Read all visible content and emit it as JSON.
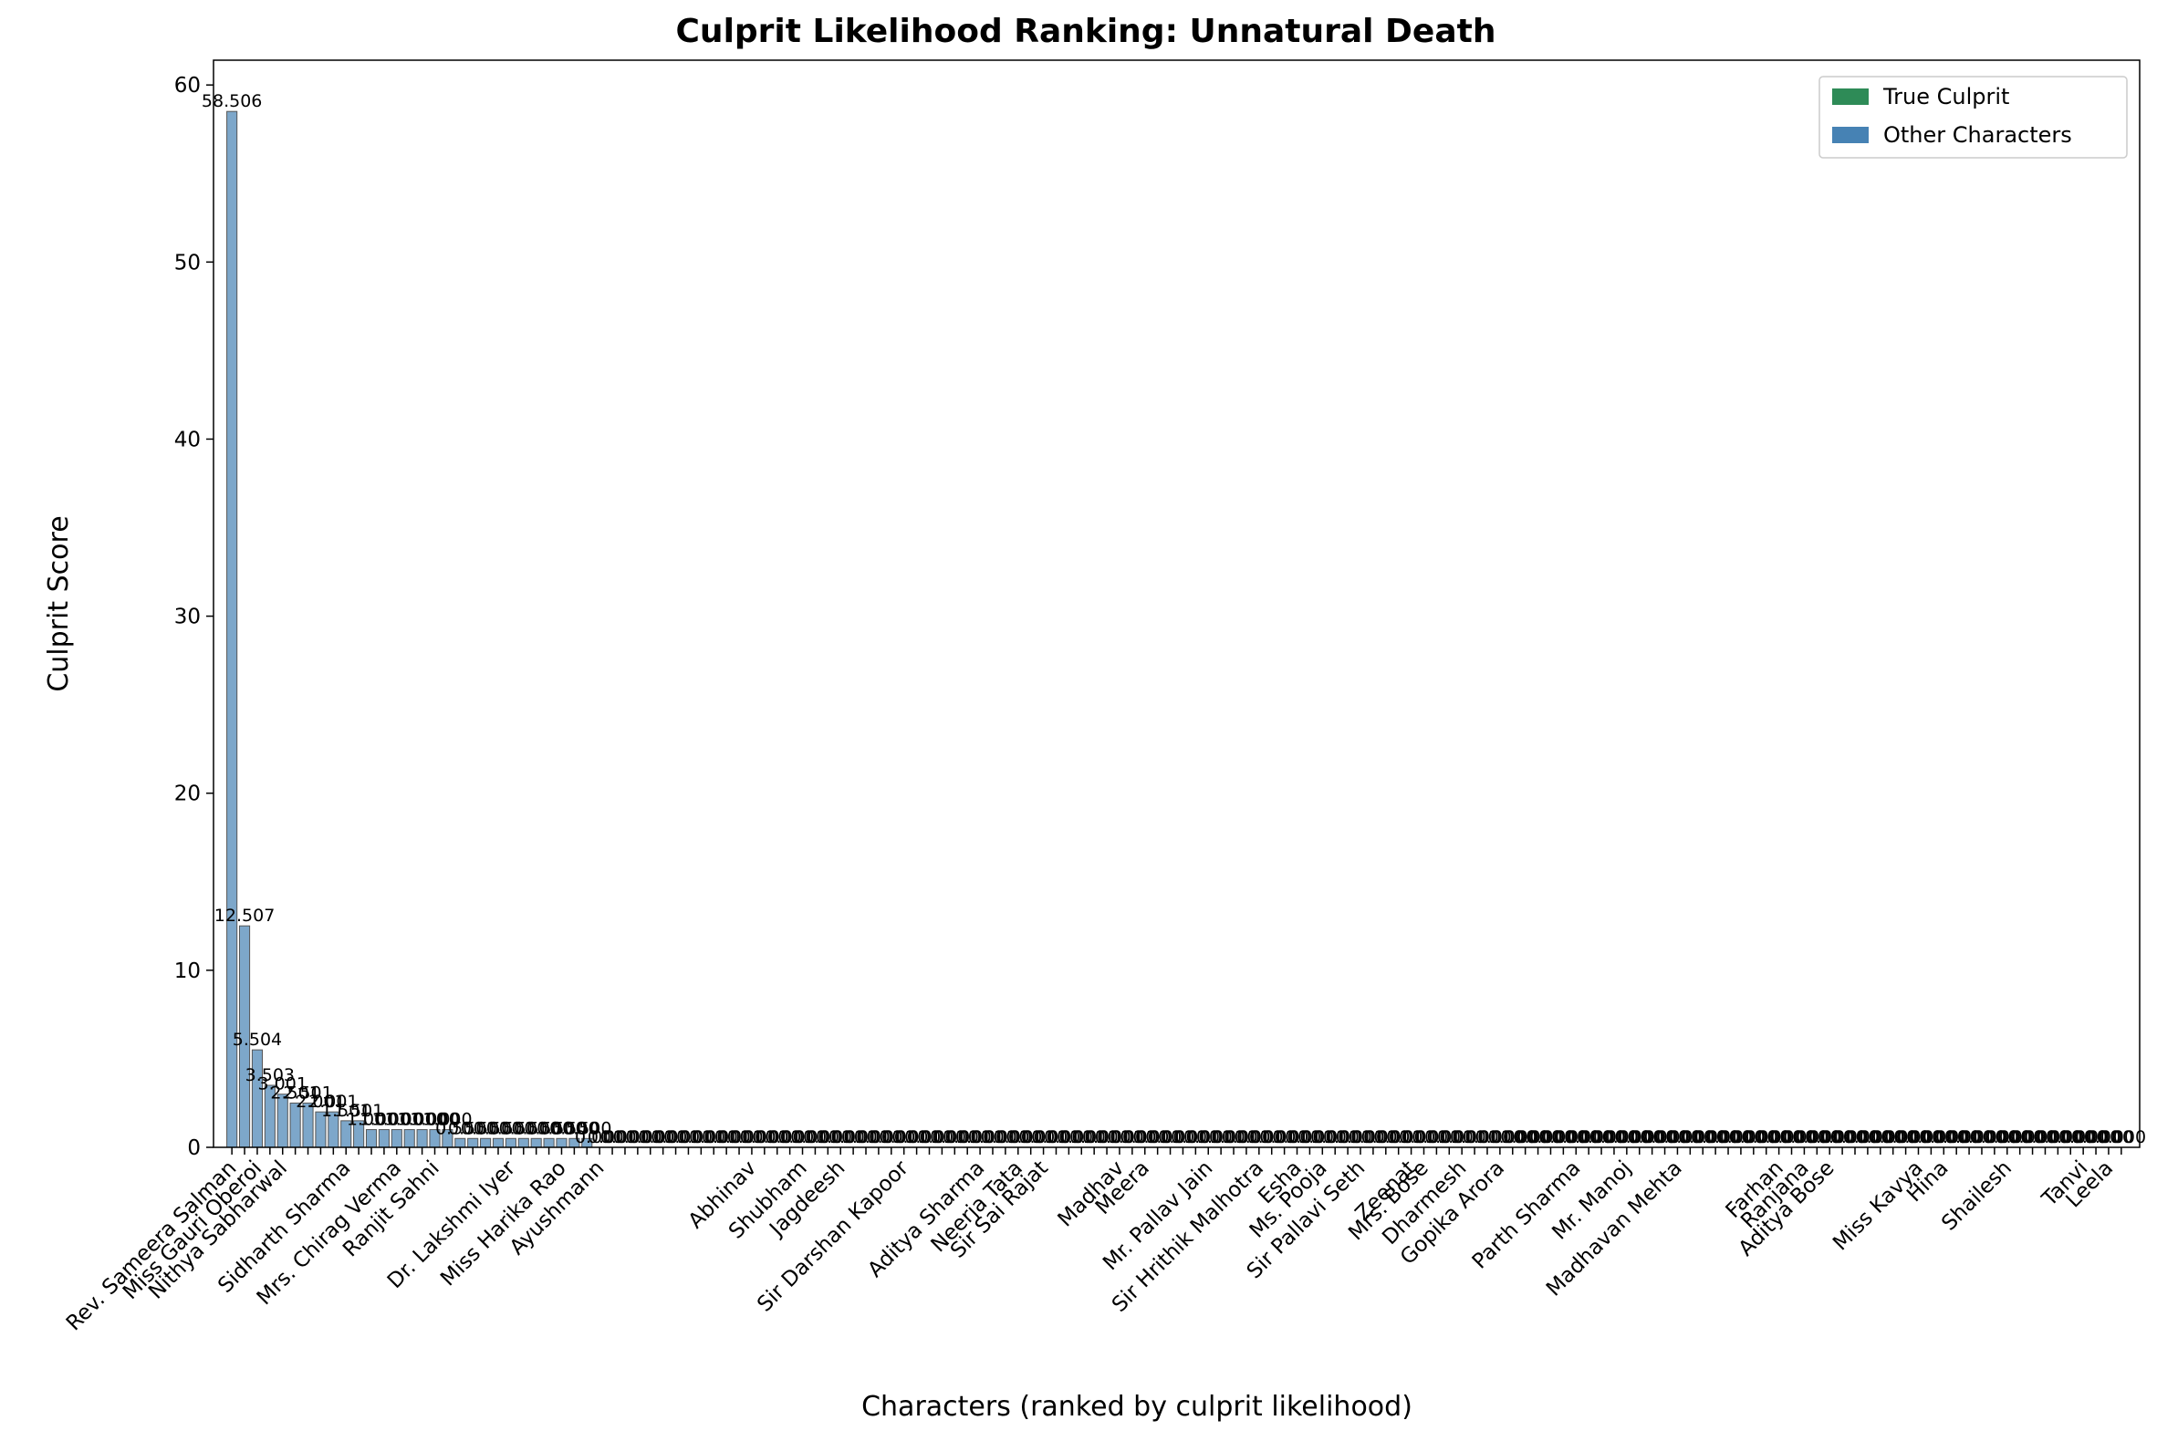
{
  "chart_data": {
    "type": "bar",
    "title": "Culprit Likelihood Ranking: Unnatural Death",
    "xlabel": "Characters (ranked by culprit likelihood)",
    "ylabel": "Culprit Score",
    "legend_position": "upper right",
    "legend": [
      {
        "name": "True Culprit",
        "color": "#2e8b57"
      },
      {
        "name": "Other Characters",
        "color": "#4682b4"
      }
    ],
    "categories": [
      "Rev. Sameera Salman",
      null,
      "Miss Gauri Oberoi",
      null,
      "Nithya Sabharwal",
      null,
      null,
      null,
      null,
      "Sidharth Sharma",
      null,
      null,
      null,
      "Mrs. Chirag Verma",
      null,
      null,
      "Ranjit Sahni",
      null,
      null,
      null,
      null,
      null,
      "Dr. Lakshmi Iyer",
      null,
      null,
      null,
      "Miss Harika Rao",
      null,
      null,
      "Ayushmann",
      null,
      null,
      null,
      null,
      null,
      null,
      null,
      null,
      null,
      null,
      null,
      "Abhinav",
      null,
      null,
      null,
      "Shubham",
      null,
      null,
      "Jagdeesh",
      null,
      null,
      null,
      null,
      "Sir Darshan Kapoor",
      null,
      null,
      null,
      null,
      null,
      "Aditya Sharma",
      null,
      null,
      "Neerja Tata",
      null,
      "Sir Sai Rajat",
      null,
      null,
      null,
      null,
      null,
      "Madhav",
      null,
      "Meera",
      null,
      null,
      null,
      null,
      "Mr. Pallav Jain",
      null,
      null,
      null,
      "Sir Hrithik Malhotra",
      null,
      null,
      "Esha",
      null,
      "Ms. Pooja",
      null,
      null,
      "Sir Pallavi Seth",
      null,
      null,
      null,
      "Zeenat",
      "Mrs. Bose",
      null,
      null,
      "Dharmesh",
      null,
      null,
      "Gopika Arora",
      null,
      null,
      null,
      null,
      null,
      "Parth Sharma",
      null,
      null,
      null,
      "Mr. Manoj",
      null,
      null,
      null,
      "Madhavan Mehta",
      null,
      null,
      null,
      null,
      null,
      null,
      null,
      "Farhan",
      null,
      "Ranjana",
      null,
      "Aditya Bose",
      null,
      null,
      null,
      null,
      null,
      null,
      "Miss Kavya",
      null,
      "Hina",
      null,
      null,
      null,
      null,
      "Shailesh",
      null,
      null,
      null,
      null,
      null,
      "Tanvi",
      null,
      "Leela",
      null
    ],
    "values": [
      58.506,
      12.507,
      5.504,
      3.503,
      3.001,
      2.501,
      2.501,
      2.001,
      2.001,
      1.501,
      1.501,
      1.001,
      1.001,
      1.001,
      1.001,
      1.0,
      1.0,
      1.0,
      0.501,
      0.501,
      0.501,
      0.501,
      0.501,
      0.501,
      0.5,
      0.5,
      0.5,
      0.5,
      0.5,
      0.001,
      0.001,
      0.001,
      0.001,
      0.001,
      0.001,
      0.001,
      0.001,
      0.001,
      0.001,
      0.001,
      0.001,
      0.001,
      0.001,
      0.001,
      0.001,
      0.001,
      0.001,
      0.001,
      0.001,
      0.001,
      0.001,
      0.001,
      0.001,
      0.001,
      0.001,
      0.001,
      0.001,
      0.001,
      0.001,
      0.001,
      0.001,
      0.001,
      0.001,
      0.001,
      0.001,
      0.001,
      0.001,
      0.001,
      0.001,
      0.001,
      0.001,
      0.001,
      0.001,
      0.001,
      0.001,
      0.001,
      0.001,
      0.001,
      0.001,
      0.001,
      0.001,
      0.001,
      0.001,
      0.001,
      0.001,
      0.001,
      0.001,
      0.001,
      0.001,
      0.001,
      0.001,
      0.001,
      0.001,
      0.001,
      0.001,
      0.001,
      0.001,
      0.001,
      0.001,
      0.001,
      0,
      0,
      0,
      0,
      0,
      0,
      0,
      0,
      0,
      0,
      0,
      0,
      0,
      0,
      0,
      0,
      0,
      0,
      0,
      0,
      0,
      0,
      0,
      0,
      0,
      0,
      0,
      0,
      0,
      0,
      0,
      0,
      0,
      0,
      0,
      0,
      0,
      0,
      0,
      0,
      0,
      0,
      0,
      0,
      0,
      0,
      0,
      0,
      0,
      0
    ],
    "value_labels": [
      "58.506",
      "12.507",
      "5.504",
      "3.503",
      "3.001",
      "2.501",
      "2.501",
      "2.001",
      "2.001",
      "1.501",
      "1.501",
      "1.001",
      "1.001",
      "1.001",
      "1.001",
      "1.000",
      "1.000",
      "1.000",
      "0.501",
      "0.501",
      "0.501",
      "0.501",
      "0.501",
      "0.501",
      "0.500",
      "0.500",
      "0.500",
      "0.500",
      "0.500",
      "0.001",
      "0.001",
      "0.001",
      "0.001",
      "0.001",
      "0.001",
      "0.001",
      "0.001",
      "0.001",
      "0.001",
      "0.001",
      "0.001",
      "0.001",
      "0.001",
      "0.001",
      "0.001",
      "0.001",
      "0.001",
      "0.001",
      "0.001",
      "0.001",
      "0.001",
      "0.001",
      "0.001",
      "0.001",
      "0.001",
      "0.001",
      "0.001",
      "0.001",
      "0.001",
      "0.001",
      "0.001",
      "0.001",
      "0.001",
      "0.001",
      "0.001",
      "0.001",
      "0.001",
      "0.001",
      "0.001",
      "0.001",
      "0.001",
      "0.001",
      "0.001",
      "0.001",
      "0.001",
      "0.001",
      "0.001",
      "0.001",
      "0.001",
      "0.001",
      "0.001",
      "0.001",
      "0.001",
      "0.001",
      "0.001",
      "0.001",
      "0.001",
      "0.001",
      "0.001",
      "0.001",
      "0.001",
      "0.001",
      "0.001",
      "0.001",
      "0.001",
      "0.001",
      "0.001",
      "0.001",
      "0.001",
      "0.001",
      "0.000",
      "0.000",
      "0.000",
      "0.000",
      "0.000",
      "0.000",
      "0.000",
      "0.000",
      "0.000",
      "0.000",
      "0.000",
      "0.000",
      "0.000",
      "0.000",
      "0.000",
      "0.000",
      "0.000",
      "0.000",
      "0.000",
      "0.000",
      "0.000",
      "0.000",
      "0.000",
      "0.000",
      "0.000",
      "0.000",
      "0.000",
      "0.000",
      "0.000",
      "0.000",
      "0.000",
      "0.000",
      "0.000",
      "0.000",
      "0.000",
      "0.000",
      "0.000",
      "0.000",
      "0.000",
      "0.000",
      "0.000",
      "0.000",
      "0.000",
      "0.000",
      "0.000",
      "0.000",
      "0.000",
      "0.000",
      "0.000",
      "0.000"
    ],
    "ylim": [
      0,
      61.4
    ],
    "yticks": [
      0,
      10,
      20,
      30,
      40,
      50,
      60
    ]
  }
}
